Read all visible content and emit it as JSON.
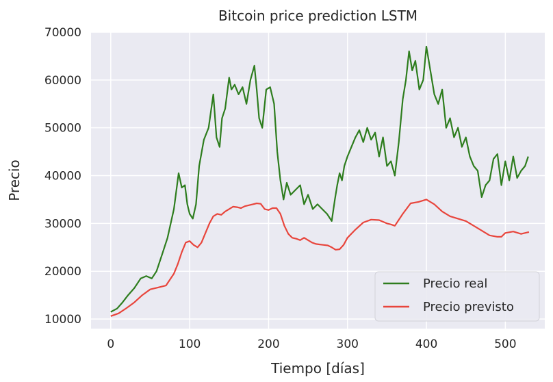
{
  "chart_data": {
    "type": "line",
    "title": "Bitcoin price prediction LSTM",
    "xlabel": "Tiempo [días]",
    "ylabel": "Precio",
    "xlim": [
      -25,
      550
    ],
    "ylim": [
      8000,
      70000
    ],
    "xticks": [
      0,
      100,
      200,
      300,
      400,
      500
    ],
    "yticks": [
      10000,
      20000,
      30000,
      40000,
      50000,
      60000,
      70000
    ],
    "grid": true,
    "legend": "lower-right",
    "series": [
      {
        "name": "Precio real",
        "color": "#2e7d1e",
        "x": [
          0,
          8,
          15,
          22,
          30,
          38,
          45,
          52,
          58,
          65,
          72,
          80,
          86,
          90,
          94,
          97,
          100,
          104,
          108,
          112,
          118,
          124,
          130,
          134,
          138,
          141,
          145,
          150,
          153,
          157,
          162,
          167,
          172,
          177,
          182,
          185,
          188,
          192,
          197,
          202,
          207,
          211,
          215,
          219,
          223,
          228,
          234,
          240,
          245,
          250,
          256,
          262,
          268,
          274,
          280,
          284,
          287,
          290,
          293,
          296,
          300,
          305,
          310,
          315,
          320,
          325,
          330,
          335,
          340,
          345,
          350,
          355,
          360,
          365,
          370,
          374,
          378,
          382,
          386,
          391,
          396,
          400,
          405,
          410,
          415,
          420,
          425,
          430,
          435,
          440,
          445,
          450,
          455,
          460,
          465,
          470,
          475,
          480,
          485,
          490,
          495,
          500,
          505,
          510,
          515,
          520,
          525,
          529
        ],
        "values": [
          11500,
          12200,
          13500,
          15000,
          16500,
          18500,
          19000,
          18500,
          20000,
          23500,
          27000,
          33000,
          40500,
          37500,
          38000,
          34000,
          32000,
          31000,
          34000,
          42000,
          47500,
          50000,
          57000,
          48000,
          46000,
          52000,
          54000,
          60500,
          58000,
          59000,
          57000,
          58500,
          55000,
          60000,
          63000,
          58000,
          52000,
          50000,
          58000,
          58500,
          55000,
          45000,
          39000,
          35000,
          38500,
          36000,
          37000,
          38000,
          34000,
          36000,
          33000,
          34000,
          33000,
          32000,
          30500,
          35000,
          38000,
          40500,
          39000,
          42000,
          44000,
          46000,
          48000,
          49500,
          47000,
          50000,
          47500,
          49000,
          44000,
          48000,
          42000,
          43000,
          40000,
          47000,
          56000,
          60000,
          66000,
          62000,
          64000,
          58000,
          60000,
          67000,
          62000,
          57000,
          55000,
          58000,
          50000,
          52000,
          48000,
          50000,
          46000,
          48000,
          44000,
          42000,
          41000,
          35500,
          38000,
          39000,
          43500,
          44500,
          38000,
          43000,
          39000,
          44000,
          39500,
          41000,
          42000,
          44000
        ]
      },
      {
        "name": "Precio previsto",
        "color": "#e8453c",
        "x": [
          0,
          10,
          20,
          30,
          40,
          50,
          60,
          70,
          80,
          85,
          90,
          95,
          100,
          105,
          110,
          115,
          120,
          125,
          130,
          135,
          140,
          145,
          150,
          155,
          160,
          165,
          170,
          175,
          180,
          185,
          190,
          195,
          200,
          205,
          210,
          215,
          220,
          225,
          230,
          235,
          240,
          245,
          250,
          255,
          260,
          265,
          270,
          275,
          280,
          285,
          290,
          295,
          300,
          310,
          320,
          330,
          340,
          350,
          355,
          360,
          370,
          380,
          390,
          400,
          410,
          420,
          430,
          440,
          450,
          460,
          470,
          480,
          490,
          495,
          500,
          510,
          520,
          530
        ],
        "values": [
          10600,
          11200,
          12300,
          13500,
          15000,
          16200,
          16600,
          17000,
          19500,
          21500,
          24000,
          26000,
          26300,
          25500,
          25000,
          26000,
          28000,
          30000,
          31500,
          32000,
          31800,
          32500,
          33000,
          33500,
          33400,
          33200,
          33600,
          33800,
          34000,
          34200,
          34100,
          33000,
          32800,
          33200,
          33200,
          32000,
          29500,
          27800,
          27000,
          26800,
          26500,
          27000,
          26500,
          26000,
          25700,
          25600,
          25500,
          25400,
          25000,
          24500,
          24600,
          25500,
          27000,
          28700,
          30200,
          30800,
          30700,
          30000,
          29800,
          29500,
          32000,
          34200,
          34500,
          35000,
          34000,
          32500,
          31500,
          31000,
          30500,
          29500,
          28500,
          27500,
          27200,
          27200,
          28000,
          28300,
          27800,
          28200
        ]
      }
    ]
  }
}
